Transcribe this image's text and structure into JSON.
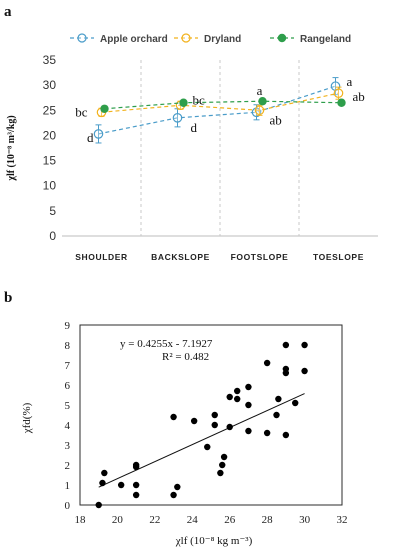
{
  "panels": {
    "a": {
      "label": "a"
    },
    "b": {
      "label": "b"
    }
  },
  "chart_data": [
    {
      "type": "line",
      "categories": [
        "SHOULDER",
        "BACKSLOPE",
        "FOOTSLOPE",
        "TOESLOPE"
      ],
      "ylabel": "χlf (10⁻⁸ m³/kg)",
      "ylim": [
        0,
        35
      ],
      "yticks": [
        0,
        5,
        10,
        15,
        20,
        25,
        30,
        35
      ],
      "legend_position": "top",
      "series": [
        {
          "name": "Apple orchard",
          "color": "#4a9cc9",
          "values": [
            20.3,
            23.5,
            24.6,
            29.8
          ],
          "errors": [
            1.8,
            1.8,
            1.5,
            1.7
          ],
          "letters": [
            "d",
            "d",
            "ab",
            "a"
          ]
        },
        {
          "name": "Dryland",
          "color": "#f2b21c",
          "values": [
            24.6,
            26.0,
            25.0,
            28.4
          ],
          "errors": [
            0.8,
            0.8,
            1.0,
            1.2
          ],
          "letters": [
            "bc",
            "bc",
            "a",
            "ab"
          ]
        },
        {
          "name": "Rangeland",
          "color": "#2e9e4b",
          "values": [
            25.3,
            26.5,
            26.8,
            26.5
          ],
          "errors": [
            0.5,
            0.4,
            0.4,
            0.4
          ],
          "letters": []
        }
      ],
      "letter_labels": [
        {
          "series": "Dryland",
          "category": "SHOULDER",
          "text": "bc"
        },
        {
          "series": "Apple orchard",
          "category": "SHOULDER",
          "text": "d"
        },
        {
          "series": "Rangeland",
          "category": "BACKSLOPE",
          "text": "bc"
        },
        {
          "series": "Apple orchard",
          "category": "BACKSLOPE",
          "text": "d"
        },
        {
          "series": "Rangeland",
          "category": "FOOTSLOPE",
          "text": "a"
        },
        {
          "series": "Apple orchard",
          "category": "FOOTSLOPE",
          "text": "ab"
        },
        {
          "series": "Apple orchard",
          "category": "TOESLOPE",
          "text": "a"
        },
        {
          "series": "Dryland",
          "category": "TOESLOPE",
          "text": "ab"
        }
      ]
    },
    {
      "type": "scatter",
      "xlabel": "χlf (10⁻⁸ kg m⁻³)",
      "ylabel": "χfd(%)",
      "xlim": [
        18,
        32
      ],
      "ylim": [
        0,
        9
      ],
      "xticks": [
        18,
        20,
        22,
        24,
        26,
        28,
        30,
        32
      ],
      "yticks": [
        0,
        1,
        2,
        3,
        4,
        5,
        6,
        7,
        8,
        9
      ],
      "points": [
        [
          19.0,
          0.0
        ],
        [
          19.2,
          1.1
        ],
        [
          19.3,
          1.6
        ],
        [
          20.2,
          1.0
        ],
        [
          21.0,
          2.0
        ],
        [
          21.0,
          1.9
        ],
        [
          21.0,
          1.0
        ],
        [
          21.0,
          0.5
        ],
        [
          23.0,
          4.4
        ],
        [
          23.0,
          0.5
        ],
        [
          23.2,
          0.9
        ],
        [
          24.1,
          4.2
        ],
        [
          24.8,
          2.9
        ],
        [
          25.2,
          4.5
        ],
        [
          25.2,
          4.0
        ],
        [
          25.5,
          1.6
        ],
        [
          25.6,
          2.0
        ],
        [
          25.7,
          2.4
        ],
        [
          26.0,
          5.4
        ],
        [
          26.0,
          3.9
        ],
        [
          26.4,
          5.7
        ],
        [
          26.4,
          5.3
        ],
        [
          27.0,
          5.9
        ],
        [
          27.0,
          5.0
        ],
        [
          27.0,
          3.7
        ],
        [
          28.0,
          7.1
        ],
        [
          28.0,
          3.6
        ],
        [
          28.5,
          4.5
        ],
        [
          28.6,
          5.3
        ],
        [
          29.0,
          8.0
        ],
        [
          29.0,
          6.8
        ],
        [
          29.0,
          6.6
        ],
        [
          29.0,
          3.5
        ],
        [
          29.5,
          5.1
        ],
        [
          30.0,
          8.0
        ],
        [
          30.0,
          6.7
        ]
      ],
      "trendline": {
        "slope": 0.4255,
        "intercept": -7.1927,
        "x_range": [
          19.0,
          30.0
        ]
      },
      "annotations": {
        "equation": "y = 0.4255x - 7.1927",
        "r2": "R² = 0.482"
      }
    }
  ]
}
